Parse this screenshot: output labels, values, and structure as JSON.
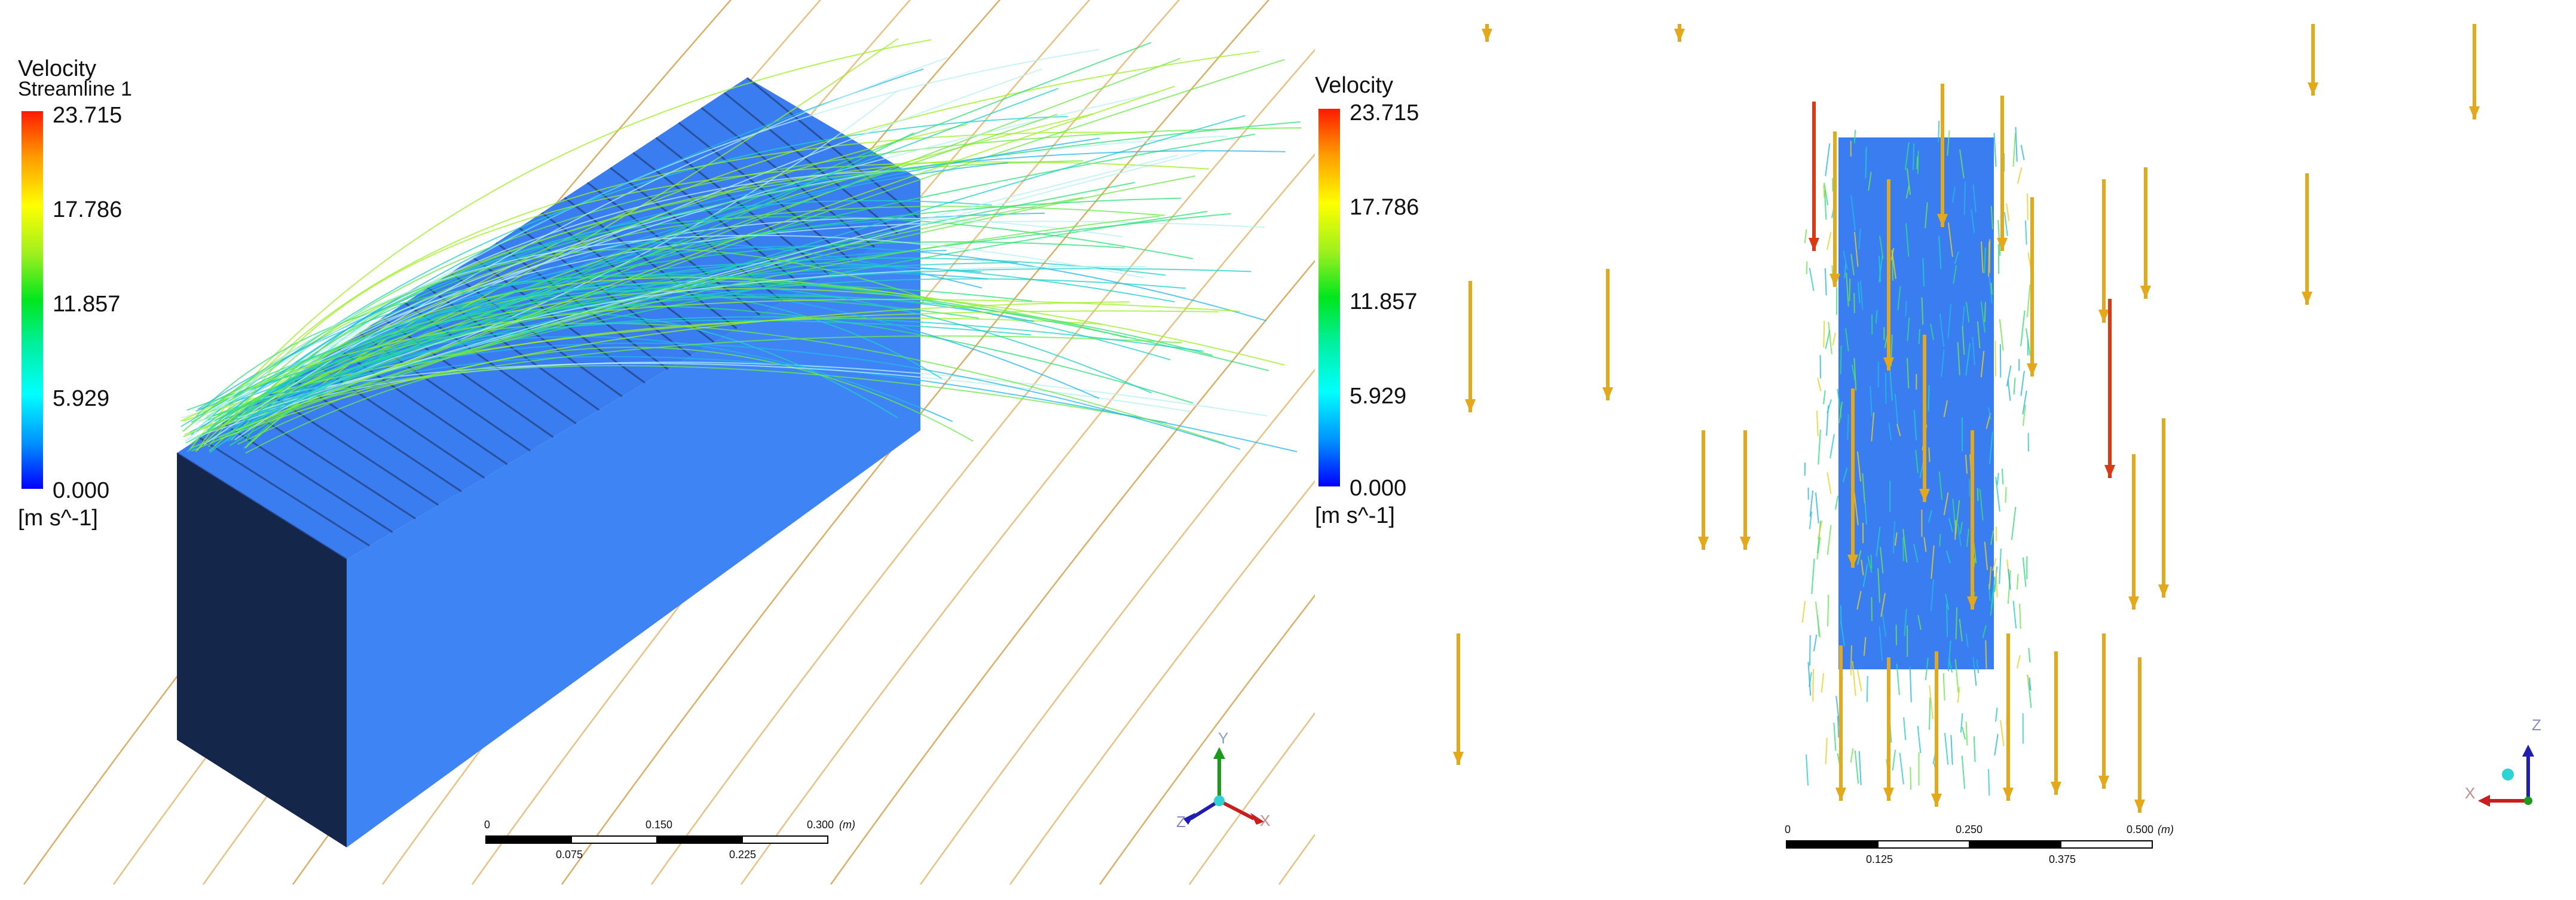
{
  "left": {
    "legend": {
      "title": "Velocity",
      "subtitle": "Streamline 1",
      "ticks": [
        "23.715",
        "17.786",
        "11.857",
        "5.929",
        "0.000"
      ],
      "unit": "[m s^-1]"
    },
    "scale": {
      "top_labels": [
        "0",
        "0.150",
        "0.300"
      ],
      "unit": "(m)",
      "bottom_labels": [
        "0.075",
        "0.225"
      ]
    },
    "axes": {
      "y": "Y",
      "x": "X",
      "z": "Z"
    }
  },
  "right": {
    "legend": {
      "title": "Velocity",
      "ticks": [
        "23.715",
        "17.786",
        "11.857",
        "5.929",
        "0.000"
      ],
      "unit": "[m s^-1]"
    },
    "scale": {
      "top_labels": [
        "0",
        "0.250",
        "0.500"
      ],
      "unit": "(m)",
      "bottom_labels": [
        "0.125",
        "0.375"
      ]
    },
    "axes": {
      "z": "Z",
      "x": "X"
    }
  },
  "colors": {
    "box_top": "#3a7df0",
    "box_front": "#3f84f5",
    "box_side": "#14264a",
    "arrow_fast": "#e3a91a",
    "arrow_red": "#d93a14"
  }
}
